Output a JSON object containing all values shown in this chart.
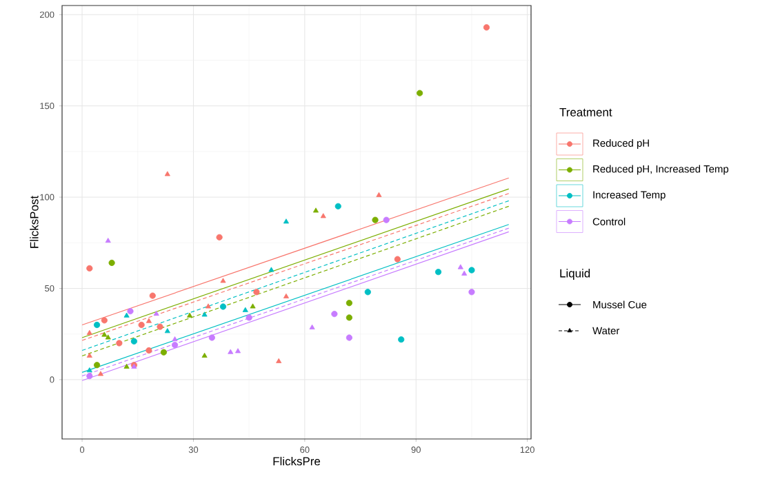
{
  "chart_data": {
    "type": "scatter",
    "xlabel": "FlicksPre",
    "ylabel": "FlicksPost",
    "legend_title": "Treatment",
    "legend": "right",
    "grid": true,
    "xlim": [
      -5.4,
      121
    ],
    "ylim": [
      -32.5,
      205
    ],
    "xticks": [
      0,
      30,
      60,
      90,
      120
    ],
    "yticks": [
      0,
      50,
      100,
      150,
      200
    ],
    "annotations": [
      "Liquid",
      "Mussel Cue",
      "Water"
    ],
    "series": [
      {
        "name": "Reduced pH",
        "marker": "circle",
        "color": "#f8766d",
        "x": [
          2,
          6,
          19,
          16,
          21,
          10,
          37,
          47,
          85,
          109,
          18,
          14
        ],
        "values": [
          61,
          32.5,
          46,
          30,
          29,
          20,
          78,
          48,
          66,
          193,
          16,
          8
        ]
      },
      {
        "name": "Reduced pH, Increased Temp",
        "marker": "circle",
        "color": "#7cae00",
        "x": [
          8,
          4,
          22,
          72,
          72,
          79,
          91
        ],
        "values": [
          64,
          8,
          15,
          42,
          34,
          87.5,
          157
        ]
      },
      {
        "name": "Increased Temp",
        "marker": "circle",
        "color": "#00bfc4",
        "x": [
          4,
          14,
          38,
          69,
          77,
          96,
          105,
          86
        ],
        "values": [
          30,
          21,
          40,
          95,
          48,
          59,
          60,
          22
        ]
      },
      {
        "name": "Control",
        "marker": "circle",
        "color": "#c77cff",
        "x": [
          13,
          25,
          35,
          2,
          45,
          68,
          72,
          82,
          105
        ],
        "values": [
          37.5,
          19,
          23,
          2,
          34,
          36,
          23,
          87.5,
          48
        ]
      },
      {
        "marker": "triangle",
        "color": "#f8766d",
        "x": [
          2,
          2,
          5,
          18,
          34,
          38,
          23,
          55,
          53,
          65,
          80
        ],
        "values": [
          25.5,
          13,
          3,
          32,
          40,
          54,
          112.5,
          45.5,
          10,
          89.5,
          101
        ]
      },
      {
        "marker": "triangle",
        "color": "#7cae00",
        "x": [
          6,
          7,
          12,
          29,
          33,
          46,
          63
        ],
        "values": [
          24.5,
          23,
          7,
          35,
          13,
          40,
          92.5
        ]
      },
      {
        "marker": "triangle",
        "color": "#00bfc4",
        "x": [
          12,
          23,
          33,
          44,
          51,
          55,
          2
        ],
        "values": [
          35,
          26.5,
          35.5,
          38,
          60,
          86.5,
          5
        ]
      },
      {
        "marker": "triangle",
        "color": "#c77cff",
        "x": [
          7,
          20,
          25,
          14,
          40,
          42,
          62,
          102,
          103
        ],
        "values": [
          76,
          36,
          22,
          7,
          15,
          15.5,
          28.5,
          61.5,
          58
        ]
      },
      {
        "type": "line",
        "line_style": "solid",
        "color": "#f8766d",
        "x": [
          0,
          115
        ],
        "values": [
          30,
          110.5
        ]
      },
      {
        "type": "line",
        "line_style": "solid",
        "color": "#7cae00",
        "x": [
          0,
          115
        ],
        "values": [
          23,
          104.5
        ]
      },
      {
        "type": "line",
        "line_style": "dashed",
        "color": "#f8766d",
        "x": [
          0,
          115
        ],
        "values": [
          21.5,
          102
        ]
      },
      {
        "type": "line",
        "line_style": "dashed",
        "color": "#00bfc4",
        "x": [
          0,
          115
        ],
        "values": [
          16,
          98
        ]
      },
      {
        "type": "line",
        "line_style": "dashed",
        "color": "#7cae00",
        "x": [
          0,
          115
        ],
        "values": [
          13,
          95
        ]
      },
      {
        "type": "line",
        "line_style": "solid",
        "color": "#00bfc4",
        "x": [
          0,
          115
        ],
        "values": [
          4,
          85
        ]
      },
      {
        "type": "line",
        "line_style": "dashed",
        "color": "#c77cff",
        "x": [
          0,
          115
        ],
        "values": [
          2,
          83
        ]
      },
      {
        "type": "line",
        "line_style": "solid",
        "color": "#c77cff",
        "x": [
          0,
          115
        ],
        "values": [
          -0.5,
          81
        ]
      }
    ]
  }
}
